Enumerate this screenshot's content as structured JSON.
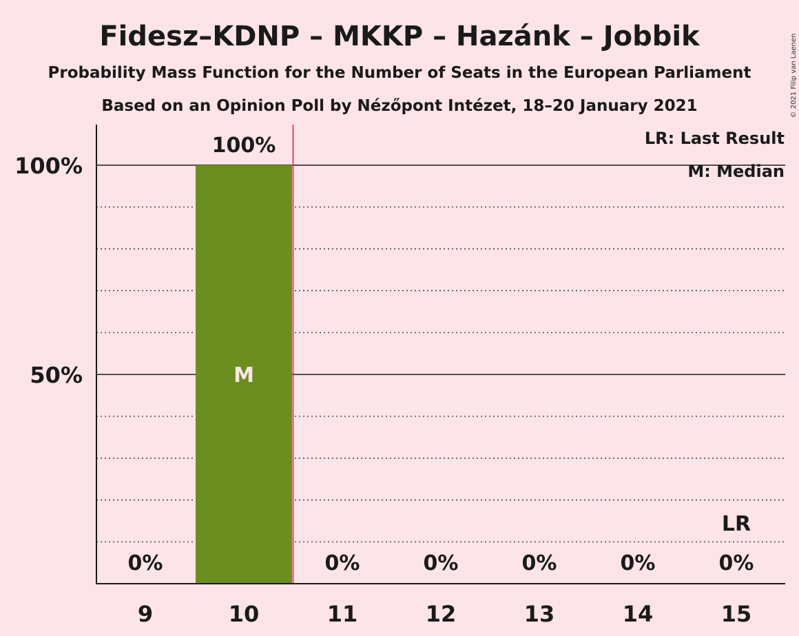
{
  "chart_data": {
    "type": "bar",
    "title": "Fidesz–KDNP – MKKP – Hazánk – Jobbik",
    "subtitle1": "Probability Mass Function for the Number of Seats in the European Parliament",
    "subtitle2": "Based on an Opinion Poll by Nézőpont Intézet, 18–20 January 2021",
    "copyright": "© 2021 Filip van Laenen",
    "categories": [
      9,
      10,
      11,
      12,
      13,
      14,
      15
    ],
    "values": [
      0,
      100,
      0,
      0,
      0,
      0,
      0
    ],
    "value_labels": [
      "0%",
      "100%",
      "0%",
      "0%",
      "0%",
      "0%",
      "0%"
    ],
    "ylim": [
      0,
      109
    ],
    "yticks": [
      {
        "value": 50,
        "label": "50%"
      },
      {
        "value": 100,
        "label": "100%"
      }
    ],
    "minor_grid_step": 10,
    "median_seat": 10,
    "median_mark": "M",
    "last_result_seat": 15,
    "last_result_mark": "LR",
    "vertical_line_after_seat": 10,
    "legend": {
      "placement": "top-right",
      "entries": [
        "LR: Last Result",
        "M: Median"
      ]
    },
    "colors": {
      "background": "#fce4e8",
      "bar": "#6b8e1e",
      "marker_line": "#e0245e",
      "axis": "#1a1a1a"
    }
  }
}
